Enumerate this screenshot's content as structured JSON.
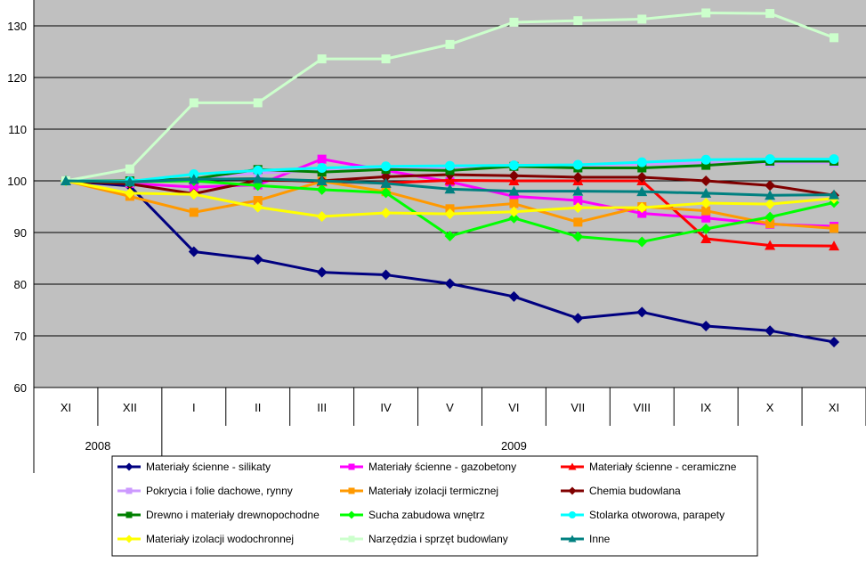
{
  "chart_data": {
    "type": "line",
    "title": "",
    "xlabel": "",
    "ylabel": "",
    "ylim": [
      60,
      135
    ],
    "y_ticks": [
      60,
      70,
      80,
      90,
      100,
      110,
      120,
      130
    ],
    "categories": [
      "XI",
      "XII",
      "I",
      "II",
      "III",
      "IV",
      "V",
      "VI",
      "VII",
      "VIII",
      "IX",
      "X",
      "XI"
    ],
    "year_groups": [
      {
        "label": "2008",
        "span": 2
      },
      {
        "label": "2009",
        "span": 11
      }
    ],
    "grid": true,
    "legend_position": "bottom",
    "series": [
      {
        "name": "Materiały ścienne - silikaty",
        "color": "#000080",
        "marker": "diamond",
        "values": [
          100,
          99,
          86.3,
          84.8,
          82.3,
          81.8,
          80.1,
          77.6,
          73.4,
          74.6,
          71.9,
          71,
          68.8
        ]
      },
      {
        "name": "Materiały ścienne - gazobetony",
        "color": "#ff00ff",
        "marker": "square",
        "values": [
          100,
          99.5,
          98.8,
          99.2,
          104.2,
          102,
          99.8,
          97,
          96.2,
          93.7,
          92.8,
          91.6,
          91.2
        ]
      },
      {
        "name": "Materiały ścienne - ceramiczne",
        "color": "#ff0000",
        "marker": "triangle",
        "values": [
          100,
          99.8,
          100.3,
          100.4,
          99.8,
          99.6,
          100.1,
          100,
          100,
          100,
          88.8,
          87.5,
          87.4
        ]
      },
      {
        "name": "Pokrycia i folie dachowe, rynny",
        "color": "#cc99ff",
        "marker": "square",
        "values": [
          100,
          99.7,
          100.5,
          101.5,
          102,
          102.3,
          102.6,
          102.8,
          103,
          103.2,
          103.5,
          103.5,
          103.5
        ]
      },
      {
        "name": "Materiały izolacji termicznej",
        "color": "#ff9900",
        "marker": "square",
        "values": [
          100,
          97,
          93.9,
          96.2,
          99.9,
          97.9,
          94.6,
          95.6,
          92,
          95,
          94.2,
          91.7,
          90.8
        ]
      },
      {
        "name": "Chemia budowlana",
        "color": "#800000",
        "marker": "diamond",
        "values": [
          100,
          99.4,
          97.5,
          100.1,
          100,
          100.8,
          101.2,
          101,
          100.7,
          100.7,
          100,
          99.1,
          97.2
        ]
      },
      {
        "name": "Drewno i materiały drewnopochodne",
        "color": "#008000",
        "marker": "square",
        "values": [
          100,
          100,
          100.4,
          102.2,
          101.7,
          102.2,
          102,
          102.8,
          102.5,
          102.5,
          103,
          103.8,
          103.8
        ]
      },
      {
        "name": "Sucha zabudowa wnętrz",
        "color": "#00ff00",
        "marker": "diamond",
        "values": [
          100,
          99.8,
          100,
          99.1,
          98.3,
          97.7,
          89.3,
          92.8,
          89.2,
          88.2,
          90.7,
          93,
          95.8
        ]
      },
      {
        "name": "Stolarka otworowa, parapety",
        "color": "#00ffff",
        "marker": "circle",
        "values": [
          100,
          99.9,
          101.3,
          102,
          102.5,
          102.8,
          102.9,
          103,
          103.1,
          103.6,
          104.1,
          104.2,
          104.2
        ]
      },
      {
        "name": "Materiały izolacji wodochronnej",
        "color": "#ffff00",
        "marker": "diamond",
        "values": [
          100,
          97.6,
          97.4,
          94.9,
          93.1,
          93.8,
          93.6,
          94,
          94.8,
          94.8,
          95.7,
          95.5,
          96.6
        ]
      },
      {
        "name": "Narzędzia i sprzęt budowlany",
        "color": "#ccffcc",
        "marker": "square",
        "values": [
          100,
          102.3,
          115.1,
          115.1,
          123.6,
          123.6,
          126.4,
          130.7,
          131,
          131.3,
          132.5,
          132.4,
          127.7
        ]
      },
      {
        "name": "Inne",
        "color": "#008080",
        "marker": "triangle",
        "values": [
          100,
          99.8,
          100.3,
          100.4,
          100,
          99.5,
          98.4,
          98,
          98,
          97.9,
          97.6,
          97.2,
          97.3
        ]
      }
    ]
  }
}
